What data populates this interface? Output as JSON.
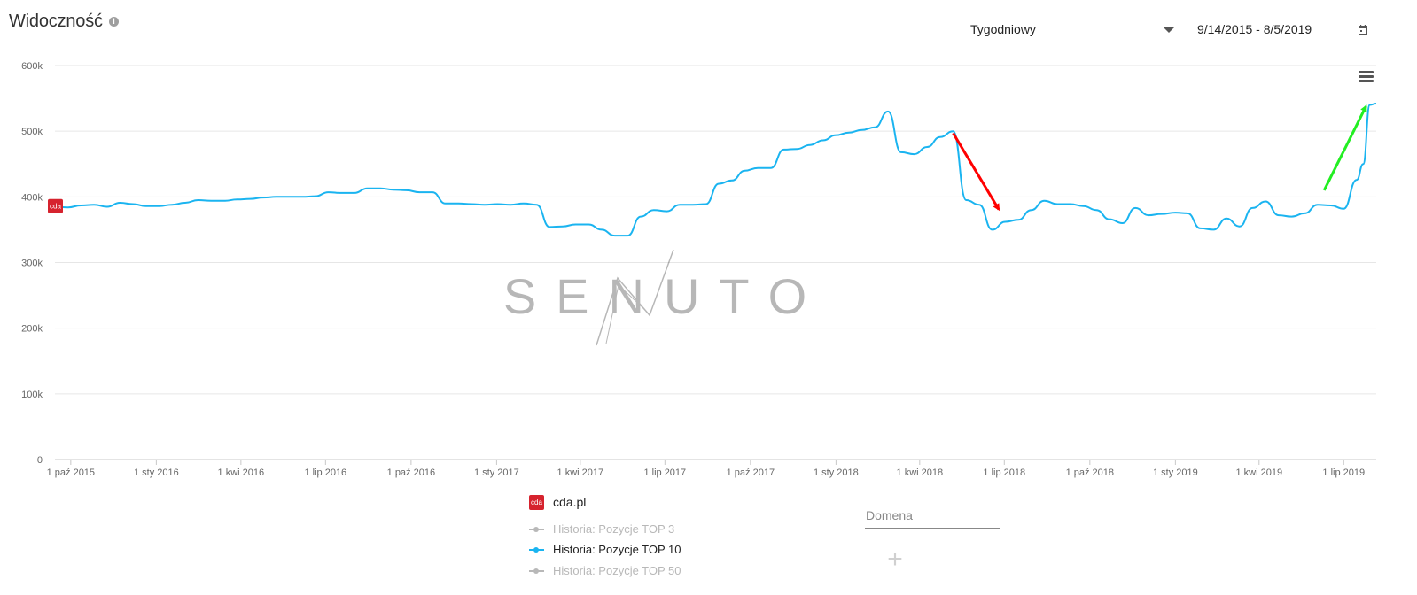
{
  "header": {
    "title": "Widoczność",
    "info_icon": "info-icon",
    "interval_select": {
      "value": "Tygodniowy"
    },
    "date_range": {
      "value": "9/14/2015 - 8/5/2019"
    },
    "menu_icon": "hamburger-menu-icon"
  },
  "colors": {
    "series": "#1ab4f0",
    "grid": "#e6e6e6",
    "axis_text": "#666666",
    "arrow_down": "#ff0000",
    "arrow_up": "#22ee22",
    "brand": "#d6232e",
    "legend_inactive": "#b8b8b8"
  },
  "chart_data": {
    "type": "line",
    "ylim": [
      0,
      600000
    ],
    "yticks": [
      {
        "value": 0,
        "label": "0"
      },
      {
        "value": 100000,
        "label": "100k"
      },
      {
        "value": 200000,
        "label": "200k"
      },
      {
        "value": 300000,
        "label": "300k"
      },
      {
        "value": 400000,
        "label": "400k"
      },
      {
        "value": 500000,
        "label": "500k"
      },
      {
        "value": 600000,
        "label": "600k"
      }
    ],
    "xlim": [
      "2015-09-14",
      "2019-08-05"
    ],
    "xticks": [
      {
        "date": "2015-10-01",
        "label": "1 paź 2015"
      },
      {
        "date": "2016-01-01",
        "label": "1 sty 2016"
      },
      {
        "date": "2016-04-01",
        "label": "1 kwi 2016"
      },
      {
        "date": "2016-07-01",
        "label": "1 lip 2016"
      },
      {
        "date": "2016-10-01",
        "label": "1 paź 2016"
      },
      {
        "date": "2017-01-01",
        "label": "1 sty 2017"
      },
      {
        "date": "2017-04-01",
        "label": "1 kwi 2017"
      },
      {
        "date": "2017-07-01",
        "label": "1 lip 2017"
      },
      {
        "date": "2017-10-01",
        "label": "1 paź 2017"
      },
      {
        "date": "2018-01-01",
        "label": "1 sty 2018"
      },
      {
        "date": "2018-04-01",
        "label": "1 kwi 2018"
      },
      {
        "date": "2018-07-01",
        "label": "1 lip 2018"
      },
      {
        "date": "2018-10-01",
        "label": "1 paź 2018"
      },
      {
        "date": "2019-01-01",
        "label": "1 sty 2019"
      },
      {
        "date": "2019-04-01",
        "label": "1 kwi 2019"
      },
      {
        "date": "2019-07-01",
        "label": "1 lip 2019"
      }
    ],
    "grid": true,
    "series": [
      {
        "name": "Historia: Pozycje TOP 10",
        "points": [
          [
            "2015-09-14",
            385000
          ],
          [
            "2015-09-28",
            384000
          ],
          [
            "2015-10-12",
            387000
          ],
          [
            "2015-10-26",
            388000
          ],
          [
            "2015-11-09",
            385000
          ],
          [
            "2015-11-23",
            391000
          ],
          [
            "2015-12-07",
            389000
          ],
          [
            "2015-12-21",
            386000
          ],
          [
            "2016-01-04",
            386000
          ],
          [
            "2016-01-18",
            388000
          ],
          [
            "2016-02-01",
            391000
          ],
          [
            "2016-02-15",
            395000
          ],
          [
            "2016-02-29",
            394000
          ],
          [
            "2016-03-14",
            394000
          ],
          [
            "2016-03-28",
            396000
          ],
          [
            "2016-04-11",
            397000
          ],
          [
            "2016-04-25",
            399000
          ],
          [
            "2016-05-09",
            400000
          ],
          [
            "2016-05-23",
            400000
          ],
          [
            "2016-06-06",
            400000
          ],
          [
            "2016-06-20",
            401000
          ],
          [
            "2016-07-04",
            407000
          ],
          [
            "2016-07-18",
            406000
          ],
          [
            "2016-08-01",
            406000
          ],
          [
            "2016-08-15",
            413000
          ],
          [
            "2016-08-29",
            413000
          ],
          [
            "2016-09-12",
            411000
          ],
          [
            "2016-09-26",
            410000
          ],
          [
            "2016-10-10",
            407000
          ],
          [
            "2016-10-24",
            407000
          ],
          [
            "2016-11-07",
            390000
          ],
          [
            "2016-11-21",
            390000
          ],
          [
            "2016-12-05",
            389000
          ],
          [
            "2016-12-19",
            388000
          ],
          [
            "2017-01-02",
            389000
          ],
          [
            "2017-01-16",
            388000
          ],
          [
            "2017-01-30",
            390000
          ],
          [
            "2017-02-13",
            388000
          ],
          [
            "2017-02-27",
            354000
          ],
          [
            "2017-03-13",
            355000
          ],
          [
            "2017-03-27",
            358000
          ],
          [
            "2017-04-10",
            358000
          ],
          [
            "2017-04-24",
            350000
          ],
          [
            "2017-05-08",
            341000
          ],
          [
            "2017-05-22",
            341000
          ],
          [
            "2017-06-05",
            370000
          ],
          [
            "2017-06-19",
            380000
          ],
          [
            "2017-07-03",
            378000
          ],
          [
            "2017-07-17",
            388000
          ],
          [
            "2017-07-31",
            388000
          ],
          [
            "2017-08-14",
            389000
          ],
          [
            "2017-08-28",
            420000
          ],
          [
            "2017-09-11",
            425000
          ],
          [
            "2017-09-25",
            440000
          ],
          [
            "2017-10-09",
            444000
          ],
          [
            "2017-10-23",
            444000
          ],
          [
            "2017-11-06",
            472000
          ],
          [
            "2017-11-20",
            473000
          ],
          [
            "2017-12-04",
            479000
          ],
          [
            "2017-12-18",
            486000
          ],
          [
            "2018-01-01",
            494000
          ],
          [
            "2018-01-15",
            498000
          ],
          [
            "2018-01-29",
            502000
          ],
          [
            "2018-02-12",
            506000
          ],
          [
            "2018-02-26",
            530000
          ],
          [
            "2018-03-12",
            468000
          ],
          [
            "2018-03-26",
            465000
          ],
          [
            "2018-04-09",
            476000
          ],
          [
            "2018-04-23",
            491000
          ],
          [
            "2018-05-07",
            500000
          ],
          [
            "2018-05-21",
            395000
          ],
          [
            "2018-06-04",
            388000
          ],
          [
            "2018-06-18",
            350000
          ],
          [
            "2018-07-02",
            362000
          ],
          [
            "2018-07-16",
            365000
          ],
          [
            "2018-07-30",
            380000
          ],
          [
            "2018-08-13",
            394000
          ],
          [
            "2018-08-27",
            389000
          ],
          [
            "2018-09-10",
            389000
          ],
          [
            "2018-09-24",
            386000
          ],
          [
            "2018-10-08",
            380000
          ],
          [
            "2018-10-22",
            366000
          ],
          [
            "2018-11-05",
            360000
          ],
          [
            "2018-11-19",
            383000
          ],
          [
            "2018-12-03",
            372000
          ],
          [
            "2018-12-17",
            374000
          ],
          [
            "2019-01-01",
            376000
          ],
          [
            "2019-01-14",
            375000
          ],
          [
            "2019-01-28",
            352000
          ],
          [
            "2019-02-11",
            350000
          ],
          [
            "2019-02-25",
            367000
          ],
          [
            "2019-03-11",
            355000
          ],
          [
            "2019-03-25",
            383000
          ],
          [
            "2019-04-08",
            393000
          ],
          [
            "2019-04-22",
            372000
          ],
          [
            "2019-05-06",
            370000
          ],
          [
            "2019-05-20",
            375000
          ],
          [
            "2019-06-03",
            388000
          ],
          [
            "2019-06-17",
            387000
          ],
          [
            "2019-07-01",
            382000
          ],
          [
            "2019-07-15",
            426000
          ],
          [
            "2019-07-22",
            450000
          ],
          [
            "2019-07-29",
            540000
          ],
          [
            "2019-08-05",
            542000
          ]
        ]
      }
    ],
    "annotations": [
      {
        "type": "arrow",
        "color": "#ff0000",
        "from": [
          "2018-05-07",
          497000
        ],
        "to": [
          "2018-06-25",
          381000
        ]
      },
      {
        "type": "arrow",
        "color": "#22ee22",
        "from": [
          "2019-06-10",
          410000
        ],
        "to": [
          "2019-07-25",
          538000
        ]
      }
    ],
    "domain_badge": {
      "text": "cda",
      "date": "2015-09-14",
      "value": 386000
    }
  },
  "legend": {
    "domain_label": "cda.pl",
    "brand_icon_text": "cda",
    "series": [
      {
        "label": "Historia: Pozycje TOP 3",
        "active": false
      },
      {
        "label": "Historia: Pozycje TOP 10",
        "active": true
      },
      {
        "label": "Historia: Pozycje TOP 50",
        "active": false
      }
    ]
  },
  "domain_input": {
    "placeholder": "Domena",
    "value": ""
  },
  "watermark": "SENUTO"
}
